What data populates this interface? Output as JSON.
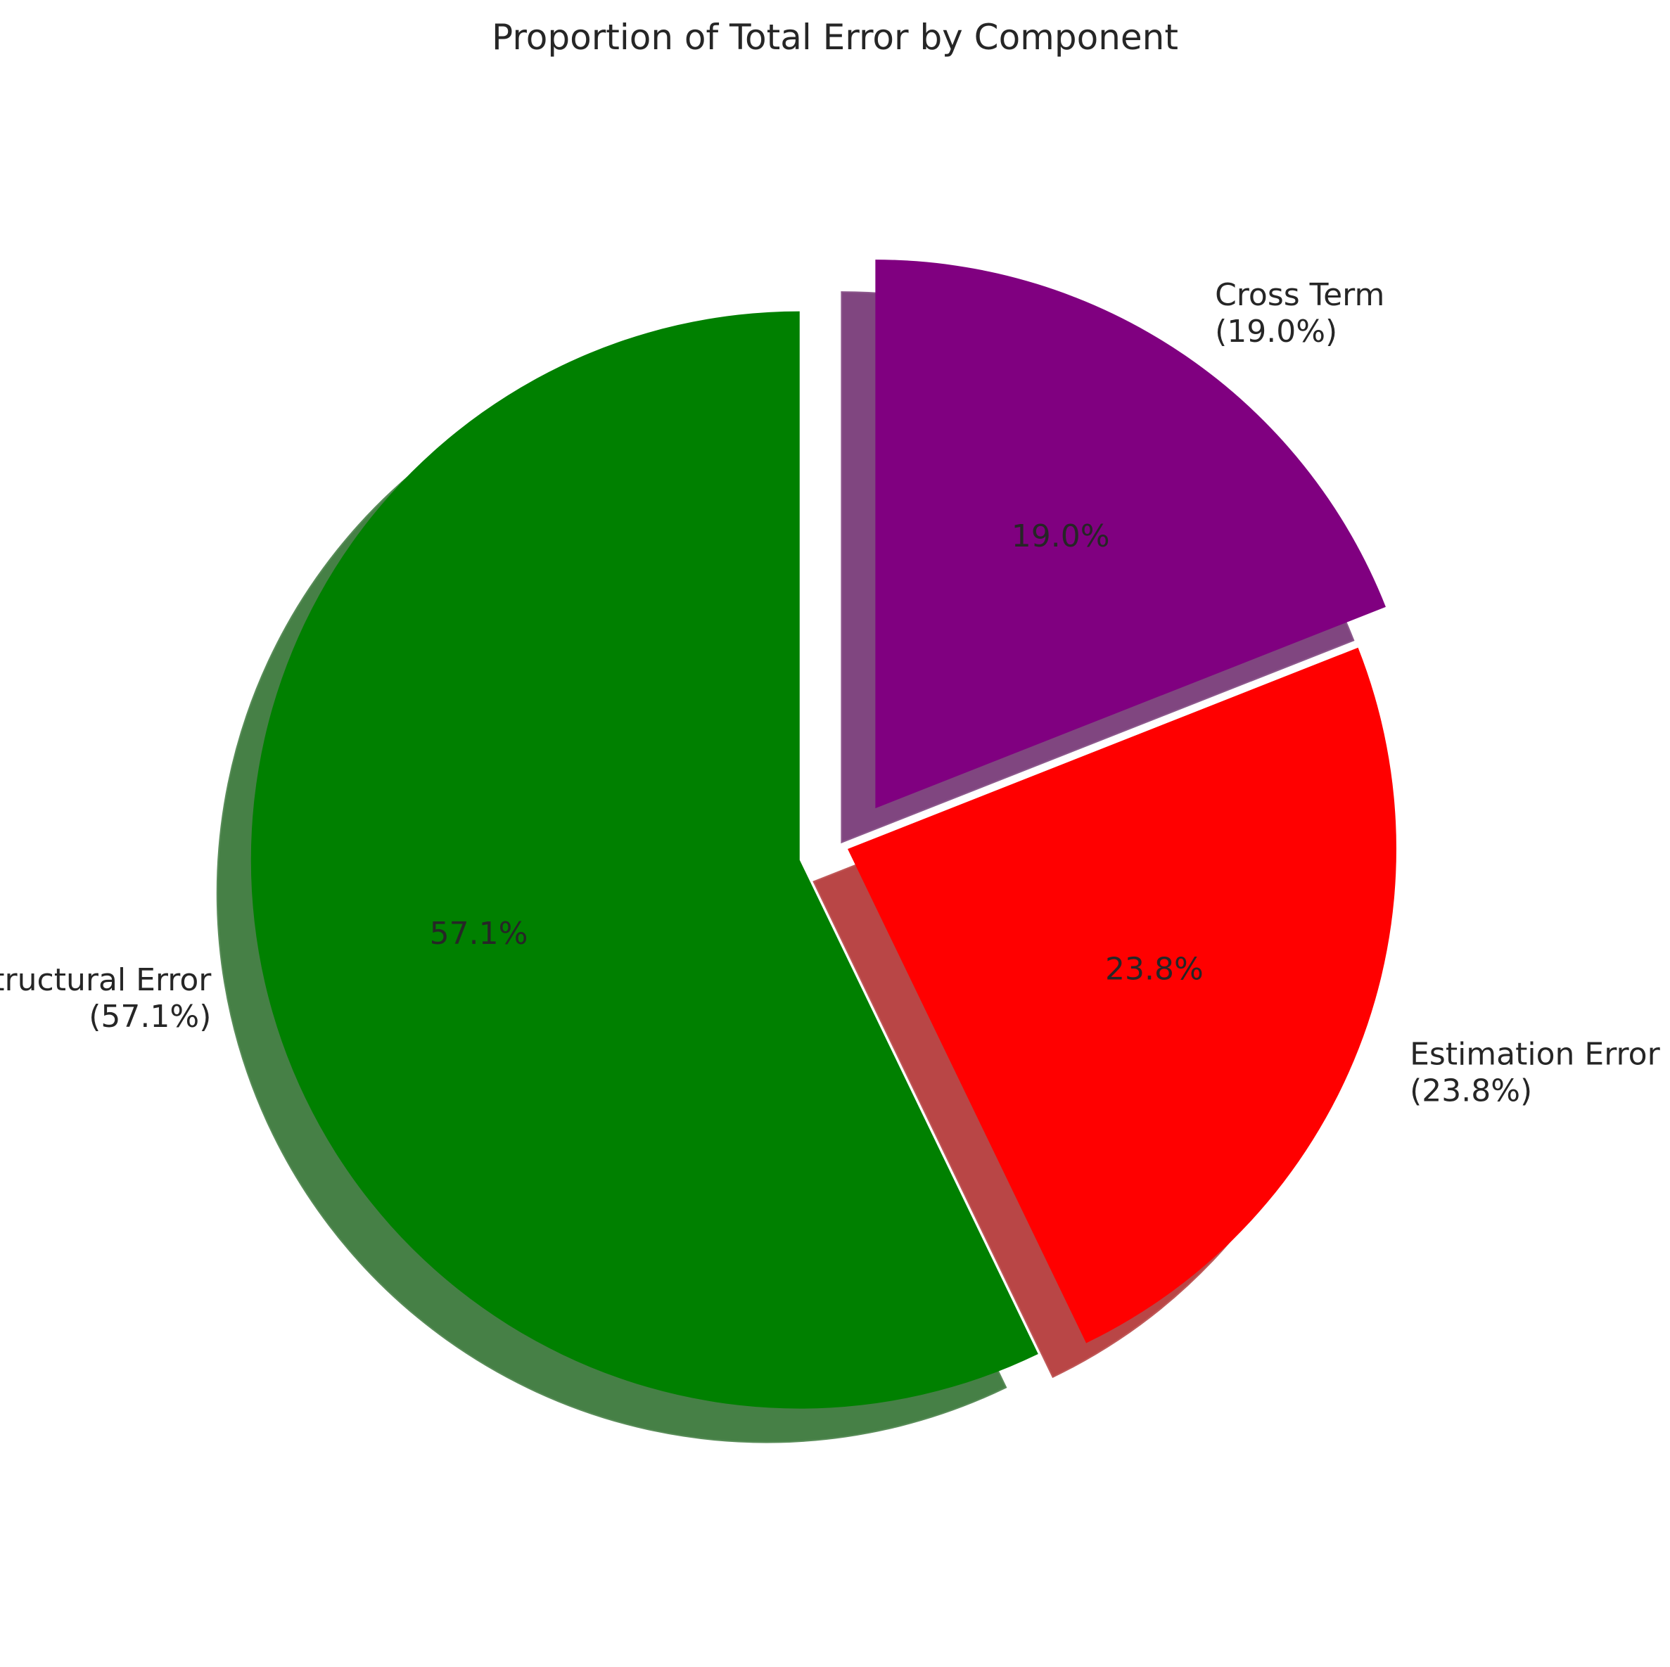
{
  "chart_data": {
    "type": "pie",
    "title": "Proportion of Total Error by Component",
    "slices": [
      {
        "label": "Structural Error",
        "outer_label_line2": "(57.1%)",
        "pct_label": "57.1%",
        "value": 57.1,
        "color": "#008000",
        "exploded": true
      },
      {
        "label": "Estimation Error",
        "outer_label_line2": "(23.8%)",
        "pct_label": "23.8%",
        "value": 23.8,
        "color": "#ff0000",
        "exploded": false
      },
      {
        "label": "Cross Term",
        "outer_label_line2": "(19.0%)",
        "pct_label": "19.0%",
        "value": 19.0,
        "color": "#800080",
        "exploded": true
      }
    ],
    "start_angle": "top",
    "direction": "counterclockwise",
    "shadow": true,
    "legend": "none"
  }
}
